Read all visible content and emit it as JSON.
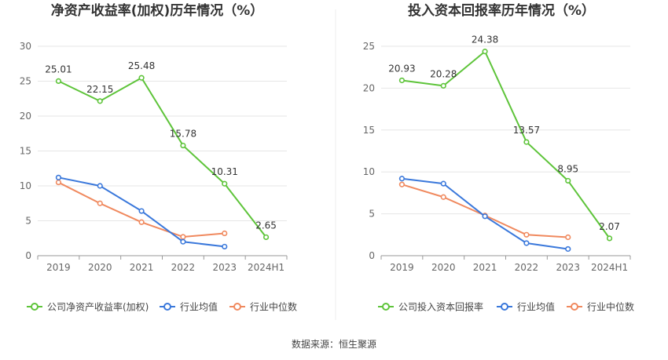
{
  "footer": {
    "source": "数据来源：恒生聚源"
  },
  "colors": {
    "company": "#5ec43a",
    "avg": "#3a78db",
    "median": "#f0895e",
    "grid": "#e6e6e6",
    "axis": "#999999"
  },
  "chart_data": [
    {
      "type": "line",
      "title": "净资产收益率(加权)历年情况（%）",
      "categories": [
        "2019",
        "2020",
        "2021",
        "2022",
        "2023",
        "2024H1"
      ],
      "ylim": [
        0,
        30
      ],
      "yticks": [
        "0",
        "5",
        "10",
        "15",
        "20",
        "25",
        "30"
      ],
      "grid": true,
      "legend_position": "bottom",
      "series": [
        {
          "name": "公司净资产收益率(加权)",
          "values": [
            25.01,
            22.15,
            25.48,
            15.78,
            10.31,
            2.65
          ],
          "labels": [
            "25.01",
            "22.15",
            "25.48",
            "15.78",
            "10.31",
            "2.65"
          ]
        },
        {
          "name": "行业均值",
          "values": [
            11.2,
            10.0,
            6.4,
            2.0,
            1.3,
            null
          ]
        },
        {
          "name": "行业中位数",
          "values": [
            10.5,
            7.5,
            4.8,
            2.7,
            3.2,
            null
          ]
        }
      ]
    },
    {
      "type": "line",
      "title": "投入资本回报率历年情况（%）",
      "categories": [
        "2019",
        "2020",
        "2021",
        "2022",
        "2023",
        "2024H1"
      ],
      "ylim": [
        0,
        25
      ],
      "yticks": [
        "0",
        "5",
        "10",
        "15",
        "20",
        "25"
      ],
      "grid": true,
      "legend_position": "bottom",
      "series": [
        {
          "name": "公司投入资本回报率",
          "values": [
            20.93,
            20.28,
            24.38,
            13.57,
            8.95,
            2.07
          ],
          "labels": [
            "20.93",
            "20.28",
            "24.38",
            "13.57",
            "8.95",
            "2.07"
          ]
        },
        {
          "name": "行业均值",
          "values": [
            9.2,
            8.6,
            4.7,
            1.5,
            0.8,
            null
          ]
        },
        {
          "name": "行业中位数",
          "values": [
            8.5,
            7.0,
            4.8,
            2.5,
            2.2,
            null
          ]
        }
      ]
    }
  ]
}
